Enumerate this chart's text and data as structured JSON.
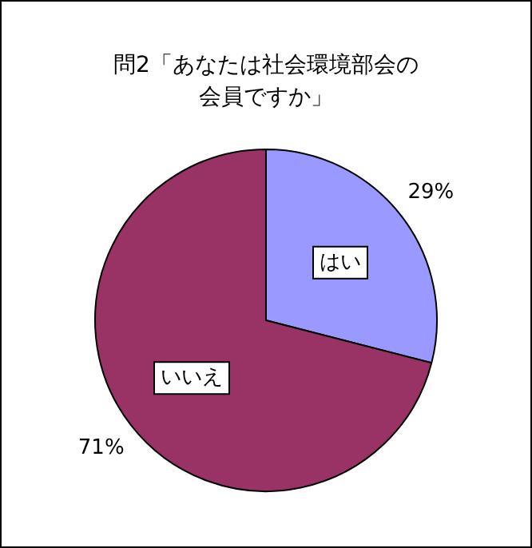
{
  "chart_data": {
    "type": "pie",
    "title": "問2「あなたは社会環境部会の会員ですか」",
    "categories": [
      "はい",
      "いいえ"
    ],
    "values": [
      29,
      71
    ],
    "value_labels": [
      "29%",
      "71%"
    ],
    "colors": [
      "#9999ff",
      "#993366"
    ],
    "legend": false
  }
}
